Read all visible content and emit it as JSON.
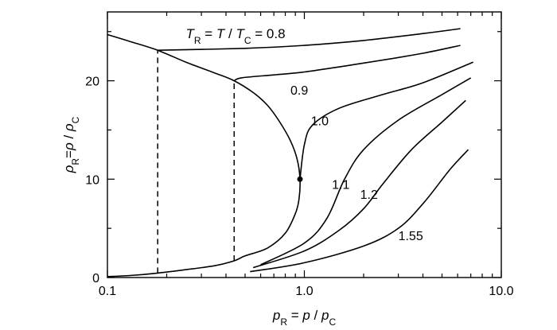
{
  "chart_data": {
    "type": "line",
    "xscale": "log",
    "xlim": [
      0.1,
      10.0
    ],
    "ylim": [
      0,
      27
    ],
    "x_ticks": [
      {
        "value": 0.1,
        "label": "0.1"
      },
      {
        "value": 1.0,
        "label": "1.0"
      },
      {
        "value": 10.0,
        "label": "10.0"
      }
    ],
    "y_ticks": [
      {
        "value": 0,
        "label": "0"
      },
      {
        "value": 10,
        "label": "10"
      },
      {
        "value": 20,
        "label": "20"
      }
    ],
    "xlabel": {
      "main": "p",
      "sub": "R",
      "mid": " = p / p",
      "sub2": "C"
    },
    "ylabel": {
      "main": "ρ",
      "sub": "R",
      "mid": "=ρ / ρ",
      "sub2": "C"
    },
    "title_annotation": {
      "pre": "T",
      "sub": "R",
      "mid": " = T / T",
      "sub2": "C",
      "post": "  = 0.8"
    },
    "critical_point": {
      "x": 0.95,
      "y": 10
    },
    "saturation_curve": [
      [
        0.1,
        24.7
      ],
      [
        0.13,
        24.0
      ],
      [
        0.18,
        23.1
      ],
      [
        0.25,
        21.9
      ],
      [
        0.35,
        20.8
      ],
      [
        0.44,
        20.0
      ],
      [
        0.55,
        18.8
      ],
      [
        0.65,
        17.5
      ],
      [
        0.75,
        15.8
      ],
      [
        0.85,
        13.9
      ],
      [
        0.92,
        12.0
      ],
      [
        0.95,
        10.0
      ],
      [
        0.94,
        8.0
      ],
      [
        0.9,
        6.5
      ],
      [
        0.8,
        4.5
      ],
      [
        0.65,
        3.0
      ],
      [
        0.5,
        2.2
      ],
      [
        0.44,
        1.7
      ],
      [
        0.35,
        1.2
      ],
      [
        0.25,
        0.8
      ],
      [
        0.18,
        0.45
      ],
      [
        0.13,
        0.2
      ],
      [
        0.1,
        0.1
      ]
    ],
    "tie_lines": [
      {
        "x": 0.18,
        "y_low": 0.45,
        "y_high": 23.1
      },
      {
        "x": 0.44,
        "y_low": 1.7,
        "y_high": 20.0
      }
    ],
    "series": [
      {
        "name": "0.8",
        "label_pos": "top",
        "points": [
          [
            0.18,
            23.1
          ],
          [
            0.5,
            23.3
          ],
          [
            1.0,
            23.6
          ],
          [
            2.0,
            24.1
          ],
          [
            4.0,
            24.8
          ],
          [
            6.2,
            25.3
          ]
        ]
      },
      {
        "name": "0.9",
        "label_pos": "below",
        "points": [
          [
            0.44,
            20.0
          ],
          [
            0.48,
            20.3
          ],
          [
            0.7,
            20.6
          ],
          [
            1.0,
            20.9
          ],
          [
            2.0,
            21.8
          ],
          [
            4.0,
            22.8
          ],
          [
            6.2,
            23.6
          ]
        ]
      },
      {
        "name": "1.0",
        "label_pos": "left",
        "points": [
          [
            0.95,
            10.0
          ],
          [
            1.0,
            13.5
          ],
          [
            1.1,
            15.5
          ],
          [
            1.5,
            17.2
          ],
          [
            2.5,
            18.6
          ],
          [
            4.0,
            19.8
          ],
          [
            7.2,
            21.9
          ]
        ]
      },
      {
        "name": "1.1",
        "label_pos": "right",
        "points": [
          [
            0.6,
            1.3
          ],
          [
            1.0,
            3.5
          ],
          [
            1.3,
            6.0
          ],
          [
            1.6,
            10.0
          ],
          [
            2.0,
            13.0
          ],
          [
            3.0,
            16.0
          ],
          [
            5.0,
            18.6
          ],
          [
            7.0,
            20.3
          ]
        ]
      },
      {
        "name": "1.2",
        "label_pos": "right",
        "points": [
          [
            0.55,
            1.0
          ],
          [
            1.0,
            2.7
          ],
          [
            1.5,
            4.8
          ],
          [
            2.0,
            7.0
          ],
          [
            2.5,
            9.5
          ],
          [
            3.5,
            13.0
          ],
          [
            5.0,
            15.8
          ],
          [
            6.6,
            18.0
          ]
        ]
      },
      {
        "name": "1.55",
        "label_pos": "below",
        "points": [
          [
            0.53,
            0.6
          ],
          [
            1.0,
            1.5
          ],
          [
            2.0,
            3.2
          ],
          [
            3.0,
            5.0
          ],
          [
            4.0,
            7.5
          ],
          [
            5.5,
            11.0
          ],
          [
            6.8,
            13.0
          ]
        ]
      }
    ]
  }
}
